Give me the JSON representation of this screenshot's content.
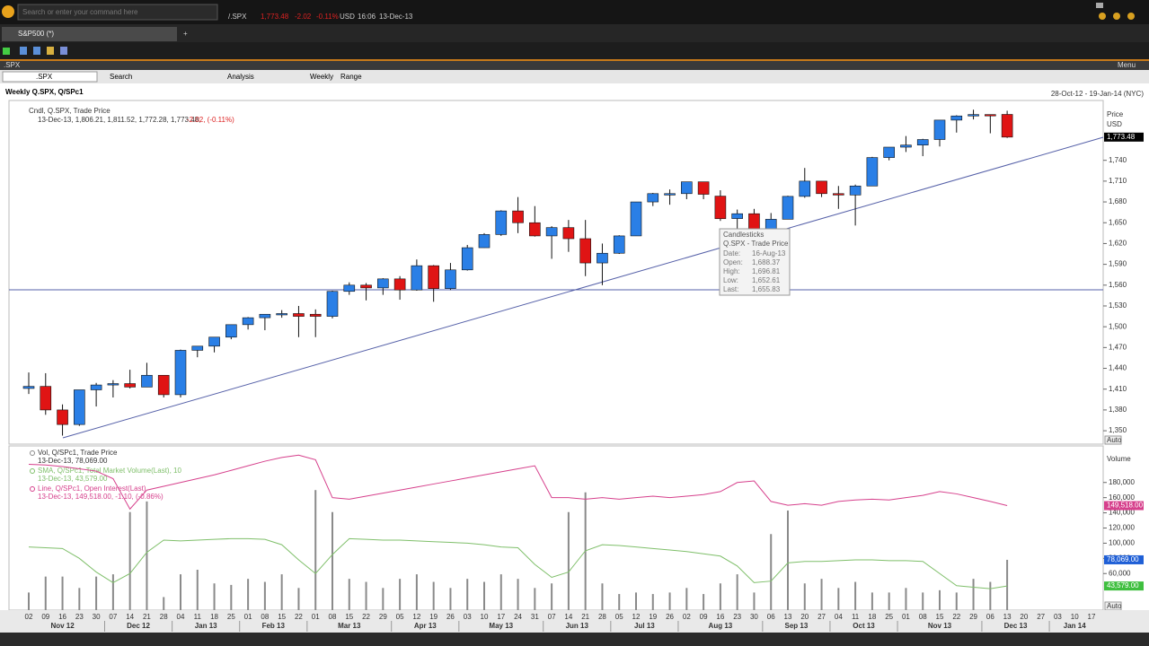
{
  "topbar": {
    "search_placeholder": "Search or enter your command here",
    "ticker": "/.SPX",
    "last": "1,773.48",
    "change": "-2.02",
    "change_pct": "-0.11%",
    "currency": "USD",
    "time": "16:06",
    "date": "13-Dec-13"
  },
  "tab": {
    "title": "S&P500 (*)"
  },
  "window": {
    "label": ".SPX",
    "menu": "Menu"
  },
  "toolbar": {
    "symbol": ".SPX",
    "search": "Search",
    "analysis": "Analysis",
    "interval": "Weekly",
    "range": "Range"
  },
  "chart_data": {
    "type": "candlestick",
    "title": "Weekly Q.SPX, Q/SPc1",
    "date_range": "28-Oct-12 - 19-Jan-14 (NYC)",
    "auto_label": "Auto",
    "days": [
      "02",
      "09",
      "16",
      "23",
      "30",
      "07",
      "14",
      "21",
      "28",
      "04",
      "11",
      "18",
      "25",
      "01",
      "08",
      "15",
      "22",
      "01",
      "08",
      "15",
      "22",
      "29",
      "05",
      "12",
      "19",
      "26",
      "03",
      "10",
      "17",
      "24",
      "31",
      "07",
      "14",
      "21",
      "28",
      "05",
      "12",
      "19",
      "26",
      "02",
      "09",
      "16",
      "23",
      "30",
      "06",
      "13",
      "20",
      "27",
      "04",
      "11",
      "18",
      "25",
      "01",
      "08",
      "15",
      "22",
      "29",
      "06",
      "13",
      "20",
      "27",
      "03",
      "10",
      "17"
    ],
    "months": [
      "Nov 12",
      "Dec 12",
      "Jan 13",
      "Feb 13",
      "Mar 13",
      "Apr 13",
      "May 13",
      "Jun 13",
      "Jul 13",
      "Aug 13",
      "Sep 13",
      "Oct 13",
      "Nov 13",
      "Dec 13",
      "Jan 14"
    ],
    "price_panel": {
      "legend_name": "Cndl, Q.SPX, Trade Price",
      "legend_quote": "13-Dec-13, 1,806.21, 1,811.52, 1,772.28, 1,773.48,",
      "legend_change": "-2.02, (-0.11%)",
      "axis_title": "Price",
      "axis_unit": "USD",
      "last_price": "1,773.48",
      "up_color": "#2a7fe6",
      "down_color": "#e01414",
      "ylim": [
        1332,
        1825
      ],
      "yticks": [
        {
          "value": 1350,
          "label": "1,350"
        },
        {
          "value": 1380,
          "label": "1,380"
        },
        {
          "value": 1410,
          "label": "1,410"
        },
        {
          "value": 1440,
          "label": "1,440"
        },
        {
          "value": 1470,
          "label": "1,470"
        },
        {
          "value": 1500,
          "label": "1,500"
        },
        {
          "value": 1530,
          "label": "1,530"
        },
        {
          "value": 1560,
          "label": "1,560"
        },
        {
          "value": 1590,
          "label": "1,590"
        },
        {
          "value": 1620,
          "label": "1,620"
        },
        {
          "value": 1650,
          "label": "1,650"
        },
        {
          "value": 1680,
          "label": "1,680"
        },
        {
          "value": 1710,
          "label": "1,710"
        },
        {
          "value": 1740,
          "label": "1,740"
        }
      ],
      "open": [
        1411,
        1414,
        1380,
        1359,
        1409,
        1416,
        1418,
        1413,
        1430,
        1402,
        1466,
        1472,
        1485,
        1503,
        1513,
        1518,
        1519,
        1518,
        1515,
        1551,
        1560,
        1556,
        1569,
        1553,
        1588,
        1555,
        1582,
        1614,
        1633,
        1667,
        1650,
        1631,
        1643,
        1627,
        1592,
        1606,
        1631,
        1680,
        1690,
        1692,
        1709,
        1688.37,
        1656,
        1663,
        1633,
        1655,
        1688,
        1710,
        1692,
        1690,
        1703,
        1744,
        1759,
        1762,
        1770,
        1798,
        1804,
        1806,
        1806.21
      ],
      "high": [
        1434,
        1433,
        1388,
        1409,
        1419,
        1423,
        1438,
        1448,
        1430,
        1467,
        1472,
        1485,
        1503,
        1514,
        1518,
        1524,
        1530,
        1525,
        1552,
        1564,
        1563,
        1570,
        1573,
        1597,
        1589,
        1592,
        1618,
        1635,
        1668,
        1687,
        1674,
        1645,
        1654,
        1654,
        1620,
        1632,
        1680,
        1693,
        1698,
        1709,
        1709,
        1696.81,
        1669,
        1670,
        1664,
        1689,
        1729,
        1710,
        1703,
        1705,
        1745,
        1759,
        1775,
        1771,
        1798,
        1805,
        1813,
        1806,
        1811.52
      ],
      "low": [
        1403,
        1373,
        1343,
        1357,
        1385,
        1398,
        1411,
        1413,
        1398,
        1398,
        1456,
        1463,
        1482,
        1496,
        1495,
        1513,
        1485,
        1485,
        1512,
        1546,
        1538,
        1546,
        1539,
        1552,
        1536,
        1553,
        1581,
        1614,
        1631,
        1635,
        1630,
        1598,
        1608,
        1573,
        1560,
        1605,
        1631,
        1674,
        1676,
        1684,
        1684,
        1652.61,
        1639,
        1627,
        1633,
        1655,
        1686,
        1687,
        1670,
        1646,
        1703,
        1740,
        1752,
        1746,
        1760,
        1780,
        1799,
        1779,
        1772.28
      ],
      "close": [
        1414,
        1380,
        1359,
        1409,
        1416,
        1418,
        1413,
        1430,
        1402,
        1466,
        1472,
        1485,
        1503,
        1513,
        1518,
        1519,
        1515,
        1515,
        1551,
        1560,
        1556,
        1569,
        1553,
        1588,
        1555,
        1582,
        1614,
        1633,
        1667,
        1650,
        1631,
        1643,
        1627,
        1592,
        1606,
        1631,
        1680,
        1692,
        1692,
        1709,
        1691,
        1655.83,
        1663,
        1633,
        1655,
        1688,
        1710,
        1692,
        1690,
        1703,
        1744,
        1759,
        1762,
        1770,
        1798,
        1804,
        1806,
        1805,
        1773.48
      ],
      "tooltip": {
        "title": "Candlesticks",
        "subtitle": "Q.SPX - Trade Price",
        "rows": [
          [
            "Date:",
            "16-Aug-13"
          ],
          [
            "Open:",
            "1,688.37"
          ],
          [
            "High:",
            "1,696.81"
          ],
          [
            "Low:",
            "1,652.61"
          ],
          [
            "Last:",
            "1,655.83"
          ]
        ]
      }
    },
    "volume_panel": {
      "axis_title": "Volume",
      "ylim": [
        11800,
        227000
      ],
      "yticks": [
        {
          "value": 60000,
          "label": "60,000"
        },
        {
          "value": 80000,
          "label": "80,000"
        },
        {
          "value": 100000,
          "label": "100,000"
        },
        {
          "value": 120000,
          "label": "120,000"
        },
        {
          "value": 140000,
          "label": "140,000"
        },
        {
          "value": 160000,
          "label": "160,000"
        },
        {
          "value": 180000,
          "label": "180,000"
        }
      ],
      "series": [
        {
          "name": "Vol, Q/SPc1, Trade Price",
          "quote": "13-Dec-13, 78,069.00",
          "kind": "bar",
          "color": "#8a8a8a",
          "tag": "78,069.00",
          "tag_color": "#1f5fd6",
          "values": [
            35000,
            56000,
            56000,
            41000,
            56000,
            59000,
            141000,
            155000,
            29000,
            59000,
            65000,
            47000,
            45000,
            53000,
            49000,
            59000,
            41000,
            170000,
            141000,
            53000,
            49000,
            41000,
            53000,
            59000,
            49000,
            41000,
            53000,
            49000,
            59000,
            53000,
            41000,
            47000,
            141000,
            167000,
            47000,
            33000,
            35000,
            33000,
            35000,
            41000,
            33000,
            47000,
            59000,
            35000,
            112000,
            143000,
            47000,
            53000,
            41000,
            49000,
            35000,
            35000,
            41000,
            35000,
            38000,
            35000,
            53000,
            49000,
            78069
          ]
        },
        {
          "name": "SMA, Q/SPc1, Total Market Volume(Last), 10",
          "quote": "13-Dec-13, 43,579.00",
          "kind": "line",
          "color": "#7fbf6a",
          "tag": "43,579.00",
          "tag_color": "#3fbf3f",
          "values": [
            95000,
            94000,
            93000,
            80000,
            62000,
            48000,
            60000,
            88000,
            104000,
            103000,
            104000,
            105000,
            106000,
            106000,
            105000,
            98000,
            78000,
            60000,
            85000,
            106000,
            105000,
            104000,
            104000,
            103000,
            102000,
            101000,
            100000,
            98000,
            95000,
            94000,
            72000,
            55000,
            62000,
            90000,
            98000,
            97000,
            95000,
            93000,
            91000,
            89000,
            86000,
            83000,
            70000,
            48000,
            50000,
            74000,
            76000,
            76000,
            77000,
            78000,
            78000,
            77000,
            77000,
            76000,
            60000,
            44000,
            42000,
            40000,
            43579
          ]
        },
        {
          "name": "Line, Q/SPc1, Open Interest(Last)",
          "quote": "13-Dec-13, 149,518.00, -1.10, (-0.86%)",
          "kind": "line",
          "color": "#d6408c",
          "tag": "149,518.00",
          "tag_color": "#d6408c",
          "values": [
            204000,
            203000,
            201000,
            198000,
            195000,
            185000,
            145000,
            170000,
            175000,
            180000,
            185000,
            190000,
            196000,
            202000,
            208000,
            213000,
            216000,
            210000,
            160000,
            158000,
            162000,
            166000,
            170000,
            174000,
            178000,
            182000,
            186000,
            190000,
            194000,
            198000,
            202000,
            160000,
            160000,
            158000,
            160000,
            158000,
            160000,
            162000,
            160000,
            162000,
            164000,
            168000,
            180000,
            182000,
            155000,
            150000,
            152000,
            150000,
            155000,
            157000,
            158000,
            157000,
            160000,
            163000,
            168000,
            165000,
            160000,
            155000,
            149518
          ]
        }
      ]
    }
  }
}
